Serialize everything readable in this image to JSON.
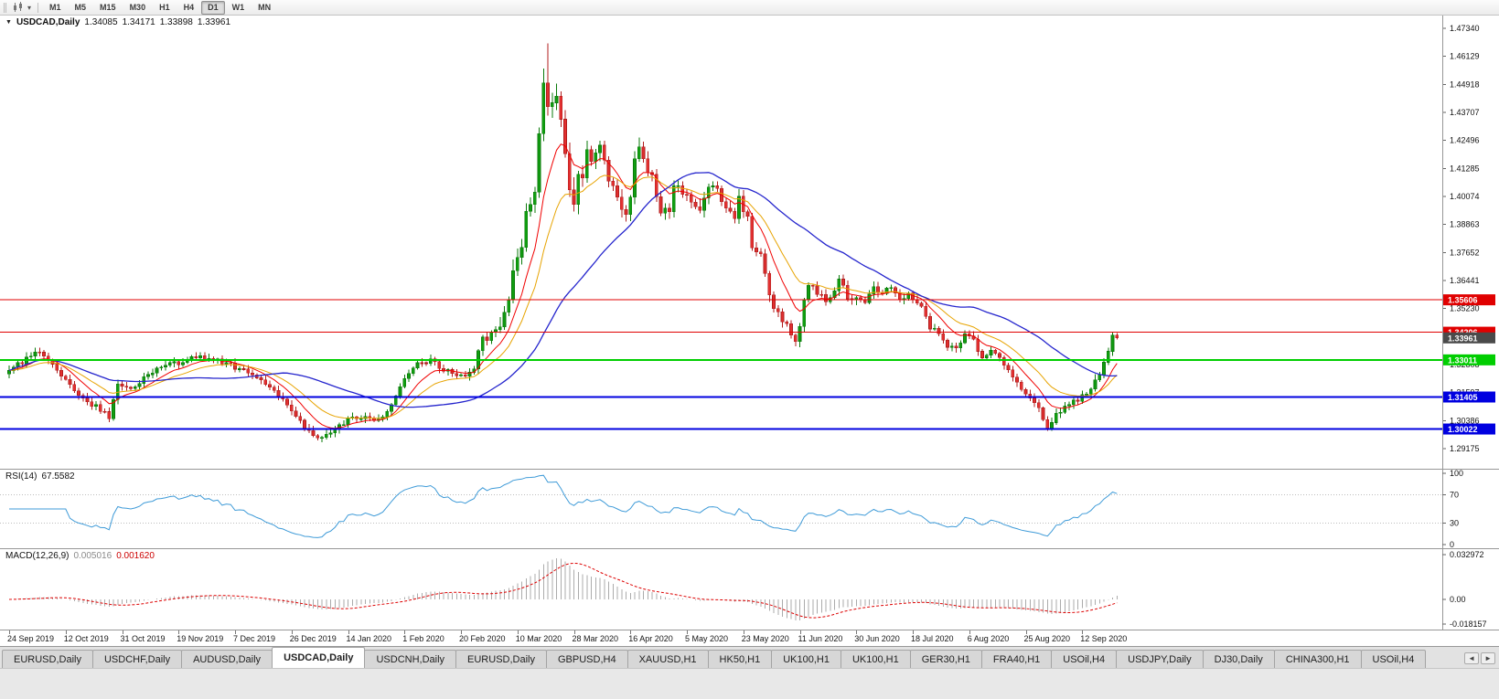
{
  "toolbar": {
    "left_icons": [
      "candlestick-chart-icon",
      "dropdown-caret-icon"
    ],
    "timeframes": [
      {
        "label": "M1",
        "active": false
      },
      {
        "label": "M5",
        "active": false
      },
      {
        "label": "M15",
        "active": false
      },
      {
        "label": "M30",
        "active": false
      },
      {
        "label": "H1",
        "active": false
      },
      {
        "label": "H4",
        "active": false
      },
      {
        "label": "D1",
        "active": true
      },
      {
        "label": "W1",
        "active": false
      },
      {
        "label": "MN",
        "active": false
      }
    ]
  },
  "chart": {
    "collapse_marker": "▼",
    "title_symbol": "USDCAD,Daily",
    "ohlc": {
      "open": "1.34085",
      "high": "1.34171",
      "low": "1.33898",
      "close": "1.33961"
    }
  },
  "indicators": {
    "rsi": {
      "label": "RSI(14)",
      "value": "67.5582"
    },
    "macd": {
      "label": "MACD(12,26,9)",
      "main_value": "0.005016",
      "signal_value": "0.001620"
    }
  },
  "tabs": {
    "items": [
      {
        "label": "EURUSD,Daily",
        "active": false
      },
      {
        "label": "USDCHF,Daily",
        "active": false
      },
      {
        "label": "AUDUSD,Daily",
        "active": false
      },
      {
        "label": "USDCAD,Daily",
        "active": true
      },
      {
        "label": "USDCNH,Daily",
        "active": false
      },
      {
        "label": "EURUSD,Daily",
        "active": false
      },
      {
        "label": "GBPUSD,H4",
        "active": false
      },
      {
        "label": "XAUUSD,H1",
        "active": false
      },
      {
        "label": "HK50,H1",
        "active": false
      },
      {
        "label": "UK100,H1",
        "active": false
      },
      {
        "label": "UK100,H1",
        "active": false
      },
      {
        "label": "GER30,H1",
        "active": false
      },
      {
        "label": "FRA40,H1",
        "active": false
      },
      {
        "label": "USOil,H4",
        "active": false
      },
      {
        "label": "USDJPY,Daily",
        "active": false
      },
      {
        "label": "DJ30,Daily",
        "active": false
      },
      {
        "label": "CHINA300,H1",
        "active": false
      },
      {
        "label": "USOil,H4",
        "active": false
      }
    ],
    "scroll_left": "◄",
    "scroll_right": "►"
  },
  "chart_data": {
    "type": "candlestick",
    "symbol": "USDCAD",
    "timeframe": "Daily",
    "last_ohlc": {
      "open": 1.34085,
      "high": 1.34171,
      "low": 1.33898,
      "close": 1.33961
    },
    "candles_count": 256,
    "date_labels_every": 13,
    "date_axis_labels": [
      "24 Sep 2019",
      "12 Oct 2019",
      "31 Oct 2019",
      "19 Nov 2019",
      "7 Dec 2019",
      "26 Dec 2019",
      "14 Jan 2020",
      "1 Feb 2020",
      "20 Feb 2020",
      "10 Mar 2020",
      "28 Mar 2020",
      "16 Apr 2020",
      "5 May 2020",
      "23 May 2020",
      "11 Jun 2020",
      "30 Jun 2020",
      "18 Jul 2020",
      "6 Aug 2020",
      "25 Aug 2020",
      "12 Sep 2020"
    ],
    "price_axis_ticks": [
      "1.47340",
      "1.46129",
      "1.44918",
      "1.43707",
      "1.42496",
      "1.41285",
      "1.40074",
      "1.38863",
      "1.37652",
      "1.36441",
      "1.35230",
      "1.34019",
      "1.32808",
      "1.31597",
      "1.30386",
      "1.29175"
    ],
    "visible_price_range": [
      1.283052,
      1.478929
    ],
    "horizontal_lines": [
      {
        "price": 1.35606,
        "label": "1.35606",
        "color": "#e00000",
        "width": 1
      },
      {
        "price": 1.34206,
        "label": "1.34206",
        "color": "#e00000",
        "width": 1
      },
      {
        "price": 1.33011,
        "label": "1.33011",
        "color": "#00ce00",
        "width": 2
      },
      {
        "price": 1.31405,
        "label": "1.31405",
        "color": "#0000e0",
        "width": 2
      },
      {
        "price": 1.30022,
        "label": "1.30022",
        "color": "#0000e0",
        "width": 2
      }
    ],
    "bid_label": {
      "price": 1.33961,
      "label": "1.33961",
      "color": "#4a4a4a"
    },
    "moving_averages": [
      {
        "period": 9,
        "type": "ema",
        "color": "#f00000",
        "widthpx": 1
      },
      {
        "period": 18,
        "type": "ema",
        "color": "#e7a300",
        "widthpx": 1
      },
      {
        "period": 40,
        "type": "sma",
        "color": "#2525cd",
        "widthpx": 1.3
      }
    ],
    "colors": {
      "up": "#109e10",
      "up_border": "#0a7a0a",
      "down": "#e23030",
      "down_border": "#b01c1c",
      "axis_text": "#111111",
      "rsi_line": "#3f9bd8",
      "macd_hist": "#ababab",
      "macd_signal": "#dd0000"
    },
    "rsi_axis_ticks": [
      {
        "v": 100,
        "label": "100"
      },
      {
        "v": 70,
        "label": "70"
      },
      {
        "v": 30,
        "label": "30"
      },
      {
        "v": 0,
        "label": "0"
      }
    ],
    "rsi_levels": [
      70,
      30
    ],
    "macd_axis_ticks": [
      {
        "v": 0.032972,
        "label": "0.032972"
      },
      {
        "v": 0,
        "label": "0.00"
      },
      {
        "v": -0.018157,
        "label": "-0.018157"
      }
    ],
    "close_anchors": [
      [
        0,
        1.3255
      ],
      [
        3,
        1.3292
      ],
      [
        6,
        1.3333
      ],
      [
        9,
        1.3305
      ],
      [
        13,
        1.3212
      ],
      [
        17,
        1.3136
      ],
      [
        21,
        1.3085
      ],
      [
        23,
        1.3058
      ],
      [
        25,
        1.3192
      ],
      [
        28,
        1.3168
      ],
      [
        31,
        1.3228
      ],
      [
        35,
        1.3268
      ],
      [
        39,
        1.3288
      ],
      [
        43,
        1.3312
      ],
      [
        47,
        1.33
      ],
      [
        50,
        1.3286
      ],
      [
        53,
        1.3258
      ],
      [
        57,
        1.3232
      ],
      [
        61,
        1.3163
      ],
      [
        65,
        1.3088
      ],
      [
        68,
        1.3012
      ],
      [
        71,
        1.2968
      ],
      [
        73,
        1.2972
      ],
      [
        75,
        1.3
      ],
      [
        78,
        1.3048
      ],
      [
        81,
        1.3058
      ],
      [
        84,
        1.3038
      ],
      [
        87,
        1.3075
      ],
      [
        89,
        1.3142
      ],
      [
        91,
        1.3228
      ],
      [
        94,
        1.3286
      ],
      [
        97,
        1.3302
      ],
      [
        100,
        1.3258
      ],
      [
        103,
        1.3232
      ],
      [
        105,
        1.3222
      ],
      [
        107,
        1.3268
      ],
      [
        109,
        1.3388
      ],
      [
        111,
        1.3412
      ],
      [
        113,
        1.3428
      ],
      [
        115,
        1.3548
      ],
      [
        116,
        1.3662
      ],
      [
        117,
        1.3732
      ],
      [
        118,
        1.3812
      ],
      [
        119,
        1.3932
      ],
      [
        120,
        1.3992
      ],
      [
        121,
        1.4052
      ],
      [
        122,
        1.4252
      ],
      [
        123,
        1.4502
      ],
      [
        124,
        1.4422
      ],
      [
        125,
        1.4432
      ],
      [
        126,
        1.4448
      ],
      [
        127,
        1.4352
      ],
      [
        128,
        1.4188
      ],
      [
        129,
        1.4062
      ],
      [
        130,
        1.3998
      ],
      [
        131,
        1.4092
      ],
      [
        132,
        1.4062
      ],
      [
        133,
        1.4208
      ],
      [
        134,
        1.4142
      ],
      [
        136,
        1.4222
      ],
      [
        138,
        1.4082
      ],
      [
        140,
        1.4012
      ],
      [
        142,
        1.3922
      ],
      [
        143,
        1.3992
      ],
      [
        144,
        1.4182
      ],
      [
        145,
        1.4222
      ],
      [
        146,
        1.4162
      ],
      [
        148,
        1.4098
      ],
      [
        150,
        1.3952
      ],
      [
        152,
        1.3948
      ],
      [
        153,
        1.4072
      ],
      [
        155,
        1.4022
      ],
      [
        157,
        1.3968
      ],
      [
        159,
        1.3928
      ],
      [
        161,
        1.4062
      ],
      [
        163,
        1.4028
      ],
      [
        165,
        1.3968
      ],
      [
        167,
        1.3922
      ],
      [
        168,
        1.3992
      ],
      [
        170,
        1.3912
      ],
      [
        171,
        1.3782
      ],
      [
        173,
        1.3772
      ],
      [
        175,
        1.3572
      ],
      [
        177,
        1.3502
      ],
      [
        179,
        1.3452
      ],
      [
        181,
        1.3392
      ],
      [
        182,
        1.3432
      ],
      [
        183,
        1.3548
      ],
      [
        184,
        1.3622
      ],
      [
        186,
        1.3592
      ],
      [
        188,
        1.3558
      ],
      [
        190,
        1.3602
      ],
      [
        191,
        1.3662
      ],
      [
        193,
        1.3562
      ],
      [
        195,
        1.3578
      ],
      [
        197,
        1.3548
      ],
      [
        199,
        1.3612
      ],
      [
        201,
        1.3592
      ],
      [
        203,
        1.3618
      ],
      [
        205,
        1.3562
      ],
      [
        207,
        1.3582
      ],
      [
        208,
        1.3558
      ],
      [
        210,
        1.3532
      ],
      [
        212,
        1.3442
      ],
      [
        214,
        1.3418
      ],
      [
        216,
        1.3362
      ],
      [
        218,
        1.3348
      ],
      [
        220,
        1.3412
      ],
      [
        222,
        1.3388
      ],
      [
        224,
        1.3302
      ],
      [
        226,
        1.3342
      ],
      [
        228,
        1.3312
      ],
      [
        230,
        1.3252
      ],
      [
        232,
        1.3202
      ],
      [
        234,
        1.3162
      ],
      [
        236,
        1.3122
      ],
      [
        238,
        1.3052
      ],
      [
        239,
        1.3008
      ],
      [
        241,
        1.3062
      ],
      [
        243,
        1.3098
      ],
      [
        245,
        1.3118
      ],
      [
        247,
        1.3142
      ],
      [
        249,
        1.3172
      ],
      [
        251,
        1.3232
      ],
      [
        252,
        1.3292
      ],
      [
        253,
        1.3338
      ],
      [
        254,
        1.34085
      ],
      [
        255,
        1.33961
      ]
    ],
    "forced_wicks": [
      {
        "i": 123,
        "high": 1.456
      },
      {
        "i": 124,
        "high": 1.4669
      },
      {
        "i": 145,
        "high": 1.4262
      },
      {
        "i": 71,
        "low": 1.2952
      },
      {
        "i": 181,
        "low": 1.336
      },
      {
        "i": 239,
        "low": 1.2994
      },
      {
        "i": 254,
        "high": 1.34198
      },
      {
        "i": 255,
        "high": 1.34171,
        "low": 1.33898
      }
    ],
    "synthesis": {
      "seed": 20200924,
      "noise": 0.0011,
      "wick_base": 0.0005,
      "wick_rand": 0.0016,
      "vol_ranges": [
        [
          0,
          107,
          1.0
        ],
        [
          108,
          112,
          1.5
        ],
        [
          113,
          132,
          2.6
        ],
        [
          133,
          160,
          1.8
        ],
        [
          161,
          175,
          1.5
        ],
        [
          176,
          200,
          1.25
        ],
        [
          201,
          249,
          1.0
        ],
        [
          250,
          255,
          1.3
        ]
      ]
    }
  }
}
